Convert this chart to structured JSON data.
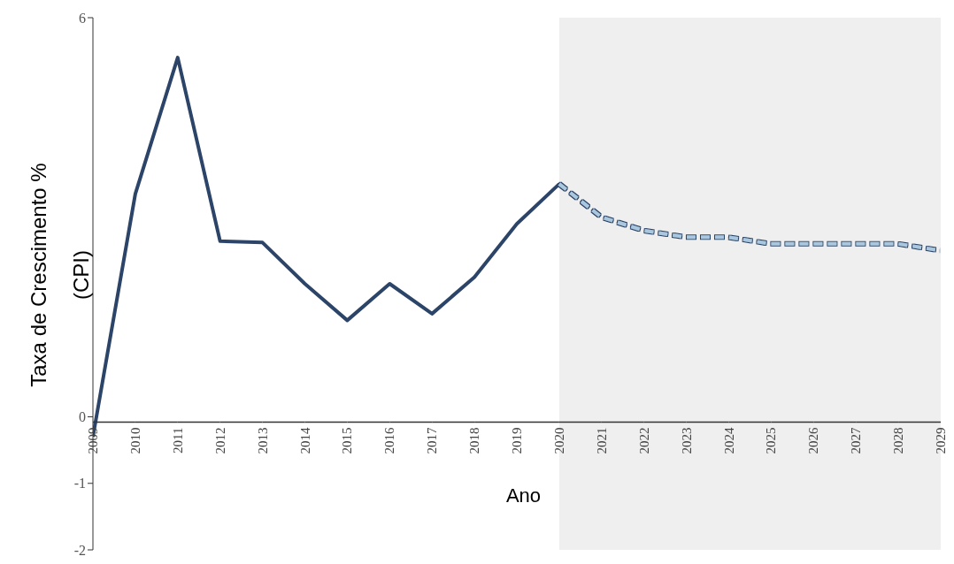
{
  "chart_data": {
    "type": "line",
    "xlabel": "Ano",
    "ylabel": "Taxa de Crescimento % (CPI)",
    "x": [
      2009,
      2010,
      2011,
      2012,
      2013,
      2014,
      2015,
      2016,
      2017,
      2018,
      2019,
      2020,
      2021,
      2022,
      2023,
      2024,
      2025,
      2026,
      2027,
      2028,
      2029
    ],
    "series": [
      {
        "color": "#2b4468",
        "line_style": "solid",
        "values": [
          -0.3,
          3.35,
          5.4,
          2.64,
          2.62,
          2.0,
          1.45,
          2.0,
          1.55,
          2.1,
          2.9,
          3.5,
          null,
          null,
          null,
          null,
          null,
          null,
          null,
          null,
          null
        ]
      },
      {
        "color": "#a9c8e0",
        "line_style": "dashed",
        "values": [
          null,
          null,
          null,
          null,
          null,
          null,
          null,
          null,
          null,
          null,
          null,
          3.5,
          3.0,
          2.8,
          2.7,
          2.7,
          2.6,
          2.6,
          2.6,
          2.6,
          2.5
        ]
      }
    ],
    "xlim": [
      2009,
      2029
    ],
    "xticks": [
      2009,
      2010,
      2011,
      2012,
      2013,
      2014,
      2015,
      2016,
      2017,
      2018,
      2019,
      2020,
      2021,
      2022,
      2023,
      2024,
      2025,
      2026,
      2027,
      2028,
      2029
    ],
    "ylim": [
      -2,
      6
    ],
    "yticks": [
      -2,
      -1,
      0,
      6
    ],
    "bands": [
      {
        "axis": "x",
        "from": 2020,
        "to": 2029,
        "color": "#efefef"
      }
    ],
    "grid": false,
    "legend": false,
    "marker": "none"
  }
}
